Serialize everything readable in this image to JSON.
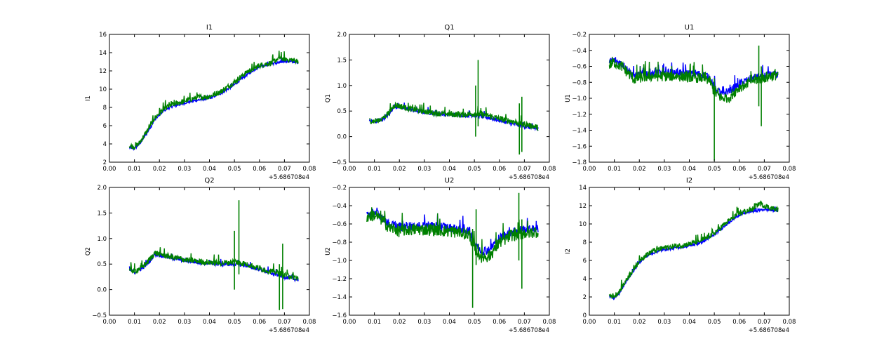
{
  "figure": {
    "offset_label": "+5.686708e4"
  },
  "colors": {
    "series_blue": "#0000ff",
    "series_green": "#008000"
  },
  "chart_data": [
    {
      "type": "line",
      "title": "I1",
      "xlabel": "",
      "ylabel": "I1",
      "xlim": [
        0.0,
        0.08
      ],
      "ylim": [
        2,
        16
      ],
      "xticks": [
        "0.00",
        "0.01",
        "0.02",
        "0.03",
        "0.04",
        "0.05",
        "0.06",
        "0.07",
        "0.08"
      ],
      "yticks": [
        "2",
        "4",
        "6",
        "8",
        "10",
        "12",
        "14",
        "16"
      ],
      "x_offset_label": "+5.686708e4",
      "series": [
        {
          "name": "blue",
          "color": "#0000ff",
          "noise": 0.15,
          "x": [
            0.008,
            0.01,
            0.012,
            0.015,
            0.018,
            0.02,
            0.022,
            0.025,
            0.03,
            0.035,
            0.04,
            0.045,
            0.05,
            0.055,
            0.06,
            0.065,
            0.068,
            0.07,
            0.073,
            0.0755
          ],
          "y": [
            3.6,
            3.5,
            4.0,
            5.2,
            6.6,
            7.2,
            7.7,
            8.1,
            8.5,
            8.8,
            9.0,
            9.6,
            10.5,
            11.6,
            12.5,
            12.8,
            12.9,
            13.1,
            13.0,
            13.0
          ]
        },
        {
          "name": "green",
          "color": "#008000",
          "noise": 0.3,
          "x": [
            0.008,
            0.01,
            0.012,
            0.015,
            0.018,
            0.02,
            0.022,
            0.025,
            0.03,
            0.035,
            0.04,
            0.045,
            0.05,
            0.055,
            0.06,
            0.065,
            0.068,
            0.07,
            0.073,
            0.0755
          ],
          "y": [
            3.8,
            3.7,
            4.1,
            5.4,
            6.8,
            7.4,
            7.9,
            8.3,
            8.7,
            9.1,
            9.2,
            9.8,
            10.8,
            11.9,
            12.6,
            12.9,
            13.5,
            13.3,
            13.2,
            13.1
          ]
        }
      ],
      "spikes": []
    },
    {
      "type": "line",
      "title": "Q1",
      "xlabel": "",
      "ylabel": "Q1",
      "xlim": [
        0.0,
        0.08
      ],
      "ylim": [
        -0.5,
        2.0
      ],
      "xticks": [
        "0.00",
        "0.01",
        "0.02",
        "0.03",
        "0.04",
        "0.05",
        "0.06",
        "0.07",
        "0.08"
      ],
      "yticks": [
        "−0.5",
        "0.0",
        "0.5",
        "1.0",
        "1.5",
        "2.0"
      ],
      "x_offset_label": "+5.686708e4",
      "series": [
        {
          "name": "blue",
          "color": "#0000ff",
          "noise": 0.04,
          "x": [
            0.008,
            0.01,
            0.013,
            0.016,
            0.018,
            0.02,
            0.025,
            0.03,
            0.035,
            0.04,
            0.045,
            0.05,
            0.055,
            0.06,
            0.065,
            0.07,
            0.0755
          ],
          "y": [
            0.3,
            0.29,
            0.33,
            0.45,
            0.6,
            0.58,
            0.52,
            0.48,
            0.45,
            0.43,
            0.42,
            0.42,
            0.38,
            0.32,
            0.25,
            0.2,
            0.15
          ]
        },
        {
          "name": "green",
          "color": "#008000",
          "noise": 0.06,
          "x": [
            0.008,
            0.01,
            0.013,
            0.016,
            0.018,
            0.02,
            0.025,
            0.03,
            0.035,
            0.04,
            0.045,
            0.05,
            0.055,
            0.06,
            0.065,
            0.07,
            0.0755
          ],
          "y": [
            0.32,
            0.3,
            0.35,
            0.48,
            0.62,
            0.6,
            0.54,
            0.5,
            0.46,
            0.44,
            0.43,
            0.45,
            0.42,
            0.35,
            0.3,
            0.25,
            0.18
          ]
        }
      ],
      "spikes": [
        {
          "x": 0.0505,
          "y_min": 0.0,
          "y_max": 1.0
        },
        {
          "x": 0.0515,
          "y_min": 0.2,
          "y_max": 1.5
        },
        {
          "x": 0.068,
          "y_min": -0.35,
          "y_max": 0.65
        },
        {
          "x": 0.069,
          "y_min": -0.3,
          "y_max": 0.78
        }
      ]
    },
    {
      "type": "line",
      "title": "U1",
      "xlabel": "",
      "ylabel": "U1",
      "xlim": [
        0.0,
        0.08
      ],
      "ylim": [
        -1.8,
        -0.2
      ],
      "xticks": [
        "0.00",
        "0.01",
        "0.02",
        "0.03",
        "0.04",
        "0.05",
        "0.06",
        "0.07",
        "0.08"
      ],
      "yticks": [
        "−1.8",
        "−1.6",
        "−1.4",
        "−1.2",
        "−1.0",
        "−0.8",
        "−0.6",
        "−0.4",
        "−0.2"
      ],
      "x_offset_label": "+5.686708e4",
      "series": [
        {
          "name": "blue",
          "color": "#0000ff",
          "noise": 0.05,
          "x": [
            0.008,
            0.01,
            0.013,
            0.016,
            0.018,
            0.02,
            0.025,
            0.03,
            0.035,
            0.04,
            0.045,
            0.048,
            0.05,
            0.053,
            0.056,
            0.06,
            0.065,
            0.07,
            0.0755
          ],
          "y": [
            -0.55,
            -0.52,
            -0.57,
            -0.66,
            -0.72,
            -0.7,
            -0.68,
            -0.67,
            -0.67,
            -0.69,
            -0.7,
            -0.73,
            -0.85,
            -0.95,
            -0.9,
            -0.82,
            -0.75,
            -0.72,
            -0.7
          ]
        },
        {
          "name": "green",
          "color": "#008000",
          "noise": 0.07,
          "x": [
            0.008,
            0.01,
            0.013,
            0.016,
            0.018,
            0.02,
            0.025,
            0.03,
            0.035,
            0.04,
            0.045,
            0.048,
            0.05,
            0.053,
            0.056,
            0.06,
            0.065,
            0.07,
            0.0755
          ],
          "y": [
            -0.58,
            -0.55,
            -0.6,
            -0.7,
            -0.76,
            -0.74,
            -0.72,
            -0.72,
            -0.72,
            -0.73,
            -0.74,
            -0.77,
            -0.92,
            -1.0,
            -0.98,
            -0.86,
            -0.78,
            -0.74,
            -0.7
          ]
        }
      ],
      "spikes": [
        {
          "x": 0.05,
          "y_min": -1.78,
          "y_max": -0.75
        },
        {
          "x": 0.0678,
          "y_min": -1.1,
          "y_max": -0.34
        },
        {
          "x": 0.0688,
          "y_min": -1.35,
          "y_max": -0.6
        }
      ]
    },
    {
      "type": "line",
      "title": "Q2",
      "xlabel": "",
      "ylabel": "Q2",
      "xlim": [
        0.0,
        0.08
      ],
      "ylim": [
        -0.5,
        2.0
      ],
      "xticks": [
        "0.00",
        "0.01",
        "0.02",
        "0.03",
        "0.04",
        "0.05",
        "0.06",
        "0.07",
        "0.08"
      ],
      "yticks": [
        "−0.5",
        "0.0",
        "0.5",
        "1.0",
        "1.5",
        "2.0"
      ],
      "x_offset_label": "+5.686708e4",
      "series": [
        {
          "name": "blue",
          "color": "#0000ff",
          "noise": 0.04,
          "x": [
            0.008,
            0.01,
            0.013,
            0.016,
            0.018,
            0.02,
            0.025,
            0.03,
            0.035,
            0.04,
            0.045,
            0.05,
            0.055,
            0.06,
            0.065,
            0.07,
            0.0755
          ],
          "y": [
            0.38,
            0.34,
            0.42,
            0.55,
            0.7,
            0.68,
            0.62,
            0.57,
            0.54,
            0.52,
            0.5,
            0.5,
            0.47,
            0.4,
            0.32,
            0.25,
            0.2
          ]
        },
        {
          "name": "green",
          "color": "#008000",
          "noise": 0.06,
          "x": [
            0.008,
            0.01,
            0.013,
            0.016,
            0.018,
            0.02,
            0.025,
            0.03,
            0.035,
            0.04,
            0.045,
            0.05,
            0.055,
            0.06,
            0.065,
            0.07,
            0.0755
          ],
          "y": [
            0.4,
            0.36,
            0.44,
            0.58,
            0.72,
            0.7,
            0.64,
            0.59,
            0.56,
            0.54,
            0.52,
            0.55,
            0.5,
            0.42,
            0.36,
            0.3,
            0.22
          ]
        }
      ],
      "spikes": [
        {
          "x": 0.05,
          "y_min": 0.0,
          "y_max": 1.15
        },
        {
          "x": 0.0518,
          "y_min": 0.3,
          "y_max": 1.75
        },
        {
          "x": 0.068,
          "y_min": -0.4,
          "y_max": 0.5
        },
        {
          "x": 0.0693,
          "y_min": -0.38,
          "y_max": 0.9
        }
      ]
    },
    {
      "type": "line",
      "title": "U2",
      "xlabel": "",
      "ylabel": "U2",
      "xlim": [
        0.0,
        0.08
      ],
      "ylim": [
        -1.6,
        -0.2
      ],
      "xticks": [
        "0.00",
        "0.01",
        "0.02",
        "0.03",
        "0.04",
        "0.05",
        "0.06",
        "0.07",
        "0.08"
      ],
      "yticks": [
        "−1.6",
        "−1.4",
        "−1.2",
        "−1.0",
        "−0.8",
        "−0.6",
        "−0.4",
        "−0.2"
      ],
      "x_offset_label": "+5.686708e4",
      "series": [
        {
          "name": "blue",
          "color": "#0000ff",
          "noise": 0.05,
          "x": [
            0.007,
            0.01,
            0.013,
            0.016,
            0.02,
            0.025,
            0.03,
            0.035,
            0.04,
            0.045,
            0.048,
            0.05,
            0.053,
            0.056,
            0.06,
            0.065,
            0.07,
            0.0755
          ],
          "y": [
            -0.5,
            -0.47,
            -0.52,
            -0.6,
            -0.63,
            -0.62,
            -0.61,
            -0.62,
            -0.64,
            -0.65,
            -0.68,
            -0.8,
            -0.9,
            -0.88,
            -0.75,
            -0.68,
            -0.66,
            -0.65
          ]
        },
        {
          "name": "green",
          "color": "#008000",
          "noise": 0.07,
          "x": [
            0.007,
            0.01,
            0.013,
            0.016,
            0.02,
            0.025,
            0.03,
            0.035,
            0.04,
            0.045,
            0.048,
            0.05,
            0.053,
            0.056,
            0.06,
            0.065,
            0.07,
            0.0755
          ],
          "y": [
            -0.52,
            -0.5,
            -0.55,
            -0.64,
            -0.67,
            -0.66,
            -0.66,
            -0.66,
            -0.68,
            -0.69,
            -0.72,
            -0.86,
            -0.96,
            -0.95,
            -0.8,
            -0.72,
            -0.7,
            -0.68
          ]
        }
      ],
      "spikes": [
        {
          "x": 0.0493,
          "y_min": -1.52,
          "y_max": -0.75
        },
        {
          "x": 0.0507,
          "y_min": -1.05,
          "y_max": -0.44
        },
        {
          "x": 0.0678,
          "y_min": -1.0,
          "y_max": -0.26
        },
        {
          "x": 0.069,
          "y_min": -1.31,
          "y_max": -0.55
        }
      ]
    },
    {
      "type": "line",
      "title": "I2",
      "xlabel": "",
      "ylabel": "I2",
      "xlim": [
        0.0,
        0.08
      ],
      "ylim": [
        0,
        14
      ],
      "xticks": [
        "0.00",
        "0.01",
        "0.02",
        "0.03",
        "0.04",
        "0.05",
        "0.06",
        "0.07",
        "0.08"
      ],
      "yticks": [
        "0",
        "2",
        "4",
        "6",
        "8",
        "10",
        "12",
        "14"
      ],
      "x_offset_label": "+5.686708e4",
      "series": [
        {
          "name": "blue",
          "color": "#0000ff",
          "noise": 0.15,
          "x": [
            0.008,
            0.01,
            0.012,
            0.015,
            0.018,
            0.02,
            0.022,
            0.025,
            0.03,
            0.035,
            0.04,
            0.045,
            0.05,
            0.055,
            0.06,
            0.065,
            0.068,
            0.07,
            0.073,
            0.0755
          ],
          "y": [
            2.1,
            1.9,
            2.4,
            3.8,
            5.0,
            5.8,
            6.3,
            6.8,
            7.2,
            7.4,
            7.6,
            8.0,
            8.8,
            10.0,
            11.0,
            11.4,
            11.5,
            11.6,
            11.5,
            11.5
          ]
        },
        {
          "name": "green",
          "color": "#008000",
          "noise": 0.3,
          "x": [
            0.008,
            0.01,
            0.012,
            0.015,
            0.018,
            0.02,
            0.022,
            0.025,
            0.03,
            0.035,
            0.04,
            0.045,
            0.05,
            0.055,
            0.06,
            0.065,
            0.068,
            0.07,
            0.073,
            0.0755
          ],
          "y": [
            2.2,
            2.1,
            2.6,
            4.0,
            5.2,
            6.0,
            6.5,
            7.0,
            7.4,
            7.6,
            7.8,
            8.2,
            9.0,
            10.2,
            11.2,
            11.6,
            12.3,
            12.0,
            11.7,
            11.6
          ]
        }
      ],
      "spikes": []
    }
  ]
}
